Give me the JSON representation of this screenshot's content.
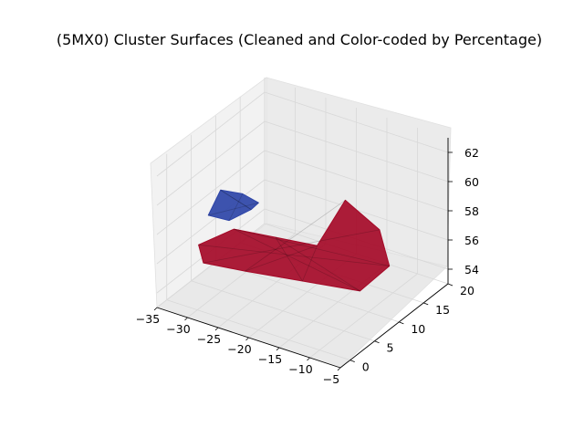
{
  "chart_data": {
    "type": "surface3d",
    "title": "(5MX0) Cluster Surfaces (Cleaned and Color-coded by Percentage)",
    "xlabel": "",
    "ylabel": "",
    "zlabel": "",
    "xlim": [
      -35,
      -5
    ],
    "ylim": [
      -2,
      20
    ],
    "zlim": [
      53,
      63
    ],
    "x_ticks": [
      "−35",
      "−30",
      "−25",
      "−20",
      "−15",
      "−10",
      "−5"
    ],
    "y_ticks": [
      "0",
      "5",
      "10",
      "15",
      "20"
    ],
    "z_ticks": [
      "54",
      "56",
      "58",
      "60",
      "62"
    ],
    "grid": true,
    "colors": {
      "low_percentage": "#2e45a8",
      "high_percentage": "#a50a28",
      "pane": "#f2f2f2",
      "grid": "#d8d8d8"
    },
    "surfaces": [
      {
        "color_key": "low_percentage",
        "points": [
          [
            -33,
            6,
            57.5
          ],
          [
            -31,
            6,
            59.5
          ],
          [
            -29,
            8,
            59.0
          ],
          [
            -28,
            10,
            58.0
          ],
          [
            -30,
            11,
            57.0
          ],
          [
            -32,
            9,
            56.5
          ]
        ]
      },
      {
        "color_key": "high_percentage",
        "points": [
          [
            -33,
            4,
            56.0
          ],
          [
            -28,
            5,
            57.5
          ],
          [
            -22,
            6,
            57.5
          ],
          [
            -16,
            7,
            57.5
          ],
          [
            -13,
            9,
            60.5
          ],
          [
            -9,
            11,
            58.5
          ],
          [
            -9,
            13,
            55.5
          ],
          [
            -13,
            12,
            53.5
          ],
          [
            -20,
            9,
            54.0
          ],
          [
            -27,
            6,
            54.5
          ],
          [
            -33,
            5,
            54.5
          ]
        ]
      }
    ]
  }
}
